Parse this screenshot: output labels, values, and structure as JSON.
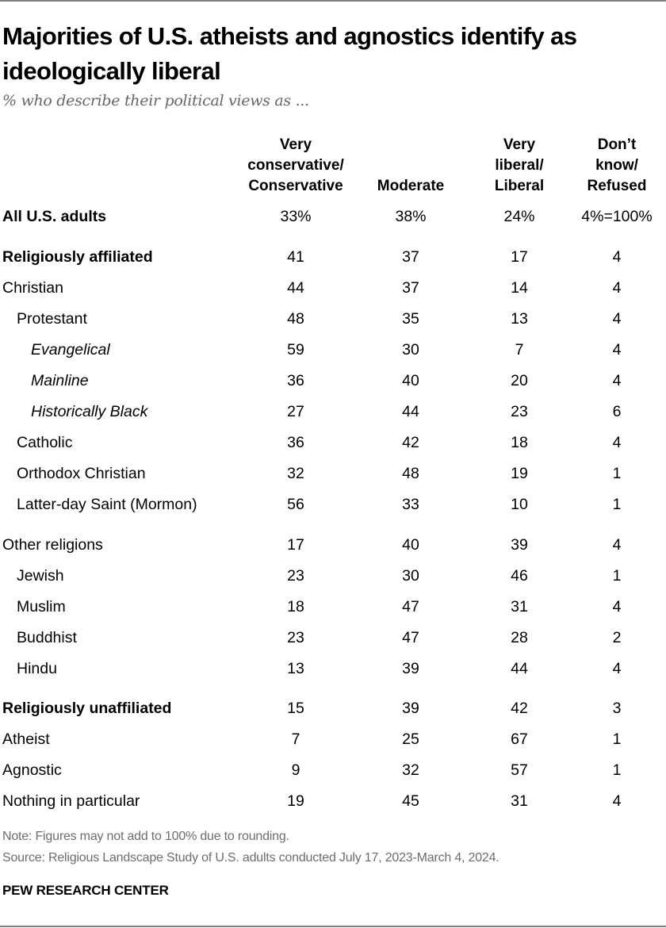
{
  "title": "Majorities of U.S. atheists and agnostics identify as ideologically liberal",
  "subtitle": "% who describe their political views as ...",
  "chart_data": {
    "type": "table",
    "columns": [
      "Very conservative/ Conservative",
      "Moderate",
      "Very liberal/ Liberal",
      "Don’t know/ Refused"
    ],
    "column_lines": [
      [
        "Very",
        "conservative/",
        "Conservative"
      ],
      [
        "Moderate"
      ],
      [
        "Very",
        "liberal/",
        "Liberal"
      ],
      [
        "Don’t",
        "know/",
        "Refused"
      ]
    ],
    "rows": [
      {
        "label": "All U.S. adults",
        "style": "bold",
        "indent": 0,
        "values": [
          "33%",
          "38%",
          "24%",
          "4%=100%"
        ]
      },
      {
        "label": "Religiously affiliated",
        "style": "bold",
        "indent": 0,
        "values": [
          "41",
          "37",
          "17",
          "4"
        ]
      },
      {
        "label": "Christian",
        "style": "",
        "indent": 0,
        "values": [
          "44",
          "37",
          "14",
          "4"
        ]
      },
      {
        "label": "Protestant",
        "style": "",
        "indent": 1,
        "values": [
          "48",
          "35",
          "13",
          "4"
        ]
      },
      {
        "label": "Evangelical",
        "style": "ital",
        "indent": 2,
        "values": [
          "59",
          "30",
          "7",
          "4"
        ]
      },
      {
        "label": "Mainline",
        "style": "ital",
        "indent": 2,
        "values": [
          "36",
          "40",
          "20",
          "4"
        ]
      },
      {
        "label": "Historically Black",
        "style": "ital",
        "indent": 2,
        "values": [
          "27",
          "44",
          "23",
          "6"
        ]
      },
      {
        "label": "Catholic",
        "style": "",
        "indent": 1,
        "values": [
          "36",
          "42",
          "18",
          "4"
        ]
      },
      {
        "label": "Orthodox Christian",
        "style": "",
        "indent": 1,
        "values": [
          "32",
          "48",
          "19",
          "1"
        ]
      },
      {
        "label": "Latter-day Saint (Mormon)",
        "style": "",
        "indent": 1,
        "values": [
          "56",
          "33",
          "10",
          "1"
        ]
      },
      {
        "label": "Other religions",
        "style": "",
        "indent": 0,
        "values": [
          "17",
          "40",
          "39",
          "4"
        ]
      },
      {
        "label": "Jewish",
        "style": "",
        "indent": 1,
        "values": [
          "23",
          "30",
          "46",
          "1"
        ]
      },
      {
        "label": "Muslim",
        "style": "",
        "indent": 1,
        "values": [
          "18",
          "47",
          "31",
          "4"
        ]
      },
      {
        "label": "Buddhist",
        "style": "",
        "indent": 1,
        "values": [
          "23",
          "47",
          "28",
          "2"
        ]
      },
      {
        "label": "Hindu",
        "style": "",
        "indent": 1,
        "values": [
          "13",
          "39",
          "44",
          "4"
        ]
      },
      {
        "label": "Religiously unaffiliated",
        "style": "bold",
        "indent": 0,
        "values": [
          "15",
          "39",
          "42",
          "3"
        ]
      },
      {
        "label": "Atheist",
        "style": "",
        "indent": 0,
        "values": [
          "7",
          "25",
          "67",
          "1"
        ]
      },
      {
        "label": "Agnostic",
        "style": "",
        "indent": 0,
        "values": [
          "9",
          "32",
          "57",
          "1"
        ]
      },
      {
        "label": "Nothing in particular",
        "style": "",
        "indent": 0,
        "values": [
          "19",
          "45",
          "31",
          "4"
        ]
      }
    ]
  },
  "note": "Note: Figures may not add to 100% due to rounding.",
  "source": "Source: Religious Landscape Study of U.S. adults conducted July 17, 2023-March 4, 2024.",
  "brand": "PEW RESEARCH CENTER"
}
